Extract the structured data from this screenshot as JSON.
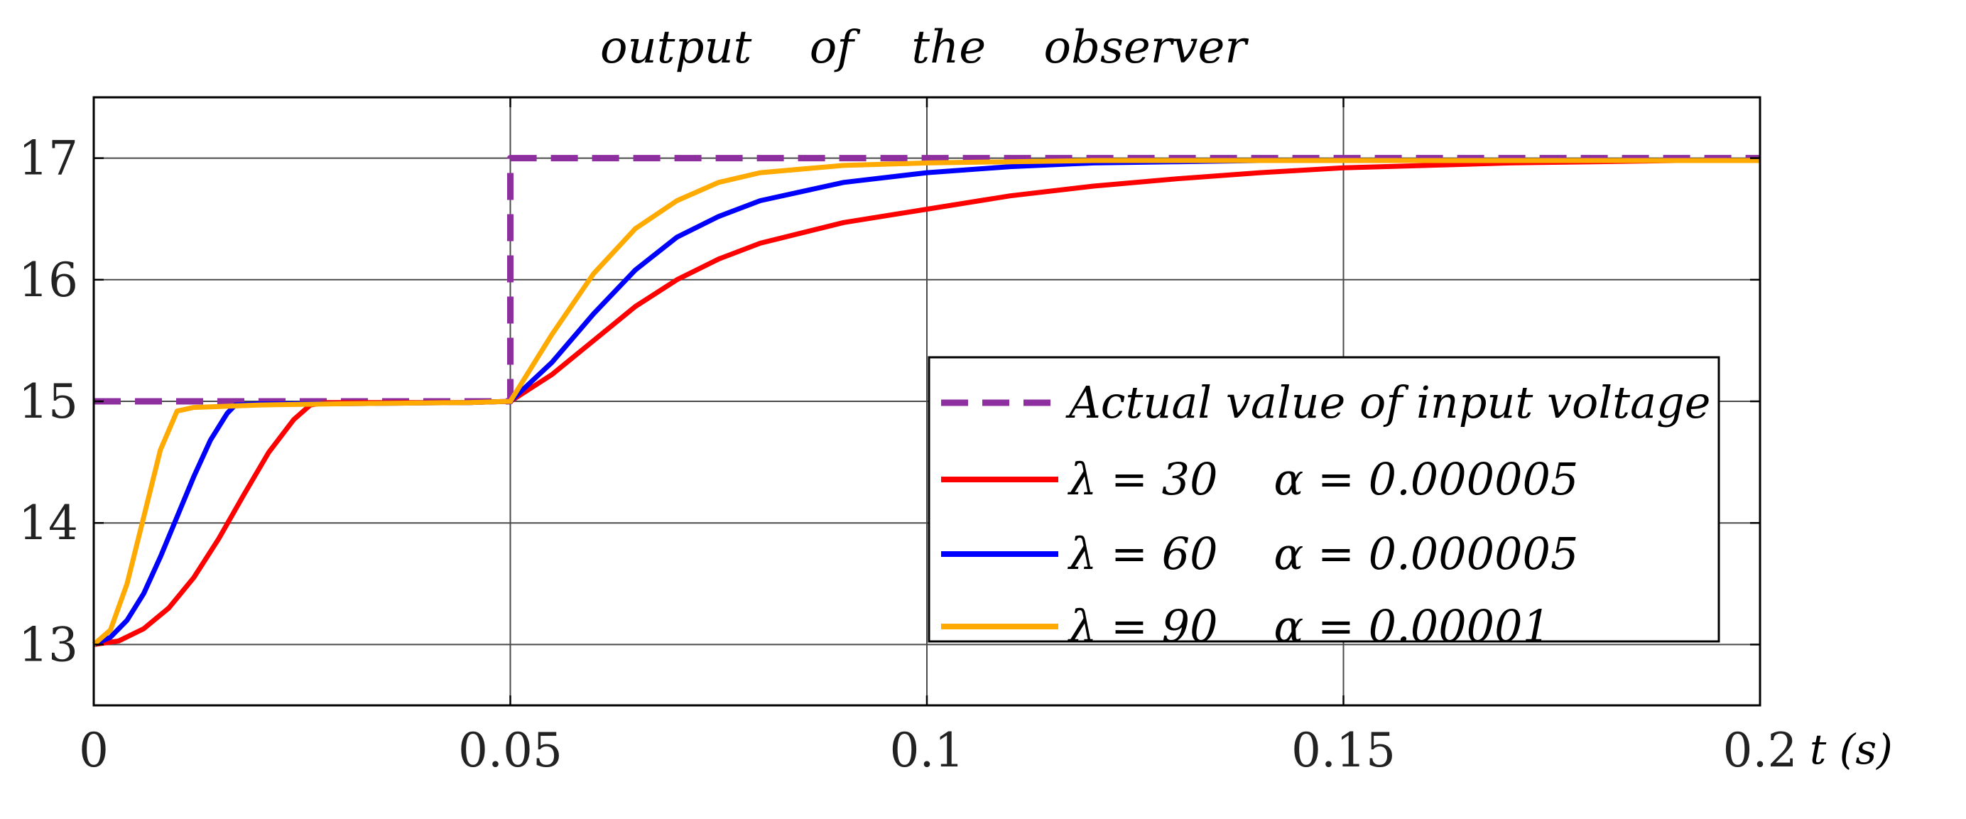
{
  "chart_data": {
    "type": "line",
    "title": "output    of    the    observer",
    "xlabel": "t (s)",
    "ylabel": "",
    "xlim": [
      0,
      0.2
    ],
    "ylim": [
      12.5,
      17.5
    ],
    "xticks": [
      0,
      0.05,
      0.1,
      0.15,
      0.2
    ],
    "xtick_labels": [
      "0",
      "0.05",
      "0.1",
      "0.15",
      "0.2"
    ],
    "yticks": [
      13,
      14,
      15,
      16,
      17
    ],
    "ytick_labels": [
      "13",
      "14",
      "15",
      "16",
      "17"
    ],
    "grid": true,
    "legend_position": "bottom-right",
    "series": [
      {
        "name": "Actual value of input voltage",
        "color": "#8e2fa0",
        "style": "dashed",
        "x": [
          0,
          0.05,
          0.05,
          0.2
        ],
        "y": [
          15,
          15,
          17,
          17
        ]
      },
      {
        "name": "λ = 30    α = 0.000005",
        "color": "#ff0000",
        "style": "solid",
        "x": [
          0,
          0.003,
          0.006,
          0.009,
          0.012,
          0.015,
          0.018,
          0.021,
          0.024,
          0.026,
          0.028,
          0.035,
          0.045,
          0.05,
          0.055,
          0.06,
          0.065,
          0.07,
          0.075,
          0.08,
          0.09,
          0.1,
          0.11,
          0.12,
          0.13,
          0.14,
          0.15,
          0.16,
          0.17,
          0.18,
          0.19,
          0.2
        ],
        "y": [
          13,
          13.03,
          13.13,
          13.3,
          13.55,
          13.87,
          14.23,
          14.58,
          14.85,
          14.97,
          14.99,
          14.99,
          14.99,
          15.0,
          15.22,
          15.5,
          15.78,
          16.0,
          16.17,
          16.3,
          16.47,
          16.58,
          16.69,
          16.77,
          16.83,
          16.88,
          16.92,
          16.94,
          16.96,
          16.97,
          16.98,
          16.98
        ]
      },
      {
        "name": "λ = 60    α = 0.000005",
        "color": "#0000ff",
        "style": "solid",
        "x": [
          0,
          0.002,
          0.004,
          0.006,
          0.008,
          0.01,
          0.012,
          0.014,
          0.016,
          0.017,
          0.02,
          0.03,
          0.045,
          0.05,
          0.055,
          0.06,
          0.065,
          0.07,
          0.075,
          0.08,
          0.09,
          0.1,
          0.11,
          0.12,
          0.13,
          0.14,
          0.15,
          0.16,
          0.18,
          0.2
        ],
        "y": [
          13,
          13.06,
          13.2,
          13.42,
          13.72,
          14.05,
          14.38,
          14.68,
          14.9,
          14.97,
          14.98,
          14.98,
          14.99,
          15.0,
          15.32,
          15.72,
          16.08,
          16.35,
          16.52,
          16.65,
          16.8,
          16.88,
          16.93,
          16.96,
          16.97,
          16.98,
          16.98,
          16.98,
          16.98,
          16.98
        ]
      },
      {
        "name": "λ = 90    α = 0.00001",
        "color": "#ffaa00",
        "style": "solid",
        "x": [
          0,
          0.002,
          0.004,
          0.006,
          0.008,
          0.01,
          0.012,
          0.02,
          0.03,
          0.045,
          0.05,
          0.055,
          0.06,
          0.065,
          0.07,
          0.075,
          0.08,
          0.09,
          0.1,
          0.11,
          0.12,
          0.14,
          0.16,
          0.18,
          0.2
        ],
        "y": [
          13,
          13.12,
          13.5,
          14.05,
          14.6,
          14.92,
          14.95,
          14.97,
          14.98,
          14.99,
          15.0,
          15.55,
          16.05,
          16.42,
          16.65,
          16.8,
          16.88,
          16.94,
          16.96,
          16.97,
          16.98,
          16.98,
          16.98,
          16.98,
          16.98
        ]
      }
    ],
    "legend_entries": {
      "actual": "Actual value of input voltage",
      "l30": "λ = 30    α = 0.000005",
      "l60": "λ = 60    α = 0.000005",
      "l90": "λ = 90    α = 0.00001"
    }
  }
}
